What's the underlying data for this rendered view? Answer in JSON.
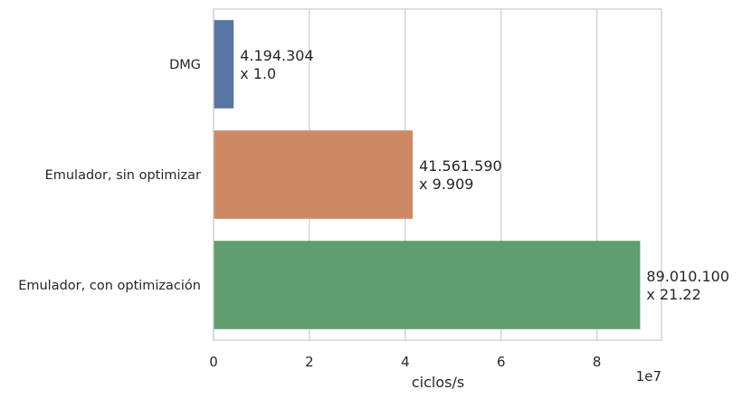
{
  "chart_data": {
    "type": "bar",
    "orientation": "horizontal",
    "categories": [
      "DMG",
      "Emulador, sin optimizar",
      "Emulador, con optimización"
    ],
    "values": [
      4194304,
      41561590,
      89010100
    ],
    "data_labels": [
      [
        "4.194.304",
        "x 1.0"
      ],
      [
        "41.561.590",
        "x 9.909"
      ],
      [
        "89.010.100",
        "x 21.22"
      ]
    ],
    "colors": [
      "#5975a4",
      "#cc8963",
      "#5f9e6e"
    ],
    "xlabel": "ciclos/s",
    "x_offset_label": "1e7",
    "xlim": [
      0,
      93460605
    ],
    "xticks": [
      0,
      20000000,
      40000000,
      60000000,
      80000000
    ],
    "xtick_labels": [
      "0",
      "2",
      "4",
      "6",
      "8"
    ],
    "grid": "vertical"
  }
}
